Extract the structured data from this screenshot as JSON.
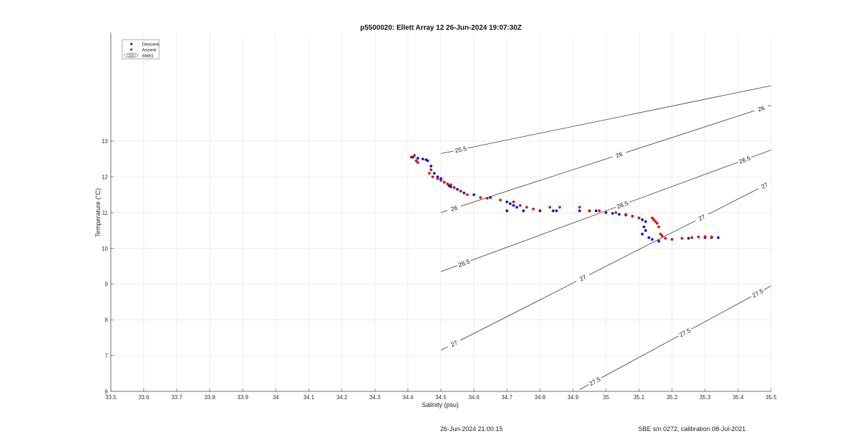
{
  "chart_data": {
    "type": "scatter",
    "title": "p5500020: Ellett Array 12 26-Jun-2024 19:07:30Z",
    "xlabel": "Salinity (psu)",
    "ylabel": "Temperature (°C)",
    "xlim": [
      33.5,
      35.5
    ],
    "ylim": [
      6,
      13.0
    ],
    "xticks": [
      "33.5",
      "33.6",
      "33.7",
      "33.8",
      "33.9",
      "34",
      "34.1",
      "34.2",
      "34.3",
      "34.4",
      "34.5",
      "34.6",
      "34.7",
      "34.8",
      "34.9",
      "35",
      "35.1",
      "35.2",
      "35.3",
      "35.4",
      "35.5"
    ],
    "yticks": [
      "6",
      "7",
      "8",
      "9",
      "10",
      "11",
      "12",
      "13"
    ],
    "grid": true,
    "legend_position": "top-left",
    "legend": [
      {
        "name": "Descent",
        "color": "#1010c8",
        "marker": "dot"
      },
      {
        "name": "Ascent",
        "color": "#d81010",
        "marker": "dot"
      },
      {
        "name": "data1",
        "marker": "contour"
      }
    ],
    "series": [
      {
        "name": "Descent",
        "color": "#1010c8",
        "points": [
          [
            34.415,
            12.55
          ],
          [
            34.43,
            12.52
          ],
          [
            34.445,
            12.5
          ],
          [
            34.455,
            12.48
          ],
          [
            34.46,
            12.45
          ],
          [
            34.47,
            12.3
          ],
          [
            34.48,
            12.1
          ],
          [
            34.49,
            12.0
          ],
          [
            34.5,
            11.95
          ],
          [
            34.51,
            11.85
          ],
          [
            34.52,
            11.8
          ],
          [
            34.525,
            11.75
          ],
          [
            34.53,
            11.72
          ],
          [
            34.54,
            11.7
          ],
          [
            34.55,
            11.65
          ],
          [
            34.56,
            11.6
          ],
          [
            34.57,
            11.55
          ],
          [
            34.6,
            11.5
          ],
          [
            34.65,
            11.42
          ],
          [
            34.7,
            11.3
          ],
          [
            34.71,
            11.25
          ],
          [
            34.72,
            11.2
          ],
          [
            34.73,
            11.15
          ],
          [
            34.7,
            11.05
          ],
          [
            34.75,
            11.05
          ],
          [
            34.8,
            11.05
          ],
          [
            34.84,
            11.05
          ],
          [
            34.85,
            11.05
          ],
          [
            34.92,
            11.05
          ],
          [
            34.95,
            11.05
          ],
          [
            34.97,
            11.05
          ],
          [
            35.0,
            11.0
          ],
          [
            35.02,
            10.98
          ],
          [
            35.04,
            10.95
          ],
          [
            35.06,
            10.93
          ],
          [
            35.08,
            10.9
          ],
          [
            35.1,
            10.85
          ],
          [
            35.11,
            10.8
          ],
          [
            35.12,
            10.75
          ],
          [
            35.115,
            10.6
          ],
          [
            35.12,
            10.5
          ],
          [
            35.11,
            10.4
          ],
          [
            35.13,
            10.3
          ],
          [
            35.14,
            10.25
          ],
          [
            35.16,
            10.2
          ],
          [
            35.2,
            10.25
          ],
          [
            35.25,
            10.28
          ],
          [
            35.3,
            10.3
          ],
          [
            35.32,
            10.3
          ],
          [
            35.34,
            10.3
          ]
        ]
      },
      {
        "name": "Ascent",
        "color": "#d81010",
        "points": [
          [
            34.41,
            12.55
          ],
          [
            34.42,
            12.6
          ],
          [
            34.425,
            12.45
          ],
          [
            34.43,
            12.4
          ],
          [
            34.47,
            12.2
          ],
          [
            34.465,
            12.1
          ],
          [
            34.475,
            12.0
          ],
          [
            34.49,
            11.95
          ],
          [
            34.5,
            11.9
          ],
          [
            34.51,
            11.85
          ],
          [
            34.52,
            11.8
          ],
          [
            34.53,
            11.78
          ],
          [
            34.54,
            11.7
          ],
          [
            34.56,
            11.6
          ],
          [
            34.58,
            11.5
          ],
          [
            34.62,
            11.42
          ],
          [
            34.64,
            11.4
          ],
          [
            34.68,
            11.35
          ],
          [
            34.72,
            11.3
          ],
          [
            34.74,
            11.2
          ],
          [
            34.76,
            11.15
          ],
          [
            34.78,
            11.1
          ],
          [
            34.83,
            11.15
          ],
          [
            34.86,
            11.15
          ],
          [
            34.92,
            11.15
          ],
          [
            34.95,
            11.05
          ],
          [
            34.98,
            11.05
          ],
          [
            35.03,
            11.0
          ],
          [
            35.06,
            10.95
          ],
          [
            35.08,
            10.9
          ],
          [
            35.1,
            10.85
          ],
          [
            35.14,
            10.85
          ],
          [
            35.145,
            10.8
          ],
          [
            35.15,
            10.75
          ],
          [
            35.155,
            10.7
          ],
          [
            35.16,
            10.6
          ],
          [
            35.165,
            10.4
          ],
          [
            35.17,
            10.35
          ],
          [
            35.18,
            10.28
          ],
          [
            35.2,
            10.25
          ],
          [
            35.23,
            10.28
          ],
          [
            35.26,
            10.3
          ],
          [
            35.28,
            10.32
          ],
          [
            35.3,
            10.33
          ],
          [
            35.32,
            10.32
          ]
        ]
      }
    ],
    "contours": [
      {
        "label": "25.5",
        "points": [
          [
            34.5,
            12.65
          ],
          [
            35.5,
            14.55
          ]
        ],
        "label_at": [
          0.06
        ]
      },
      {
        "label": "26",
        "points": [
          [
            34.5,
            11.0
          ],
          [
            35.5,
            14.0
          ]
        ],
        "label_at": [
          0.04,
          0.54,
          0.97
        ]
      },
      {
        "label": "26.5",
        "points": [
          [
            34.5,
            9.35
          ],
          [
            35.5,
            12.75
          ]
        ],
        "label_at": [
          0.07,
          0.55,
          0.92
        ]
      },
      {
        "label": "27",
        "points": [
          [
            34.5,
            7.15
          ],
          [
            35.5,
            11.85
          ]
        ],
        "label_at": [
          0.04,
          0.43,
          0.79,
          0.98
        ]
      },
      {
        "label": "27.5",
        "points": [
          [
            34.92,
            6.05
          ],
          [
            35.5,
            8.95
          ]
        ],
        "label_at": [
          0.08,
          0.55,
          0.93
        ]
      }
    ]
  },
  "footer": {
    "timestamp": "26-Jun-2024 21:00:15",
    "calibration": "SBE s/n 0272, calibration 08-Jul-2021"
  }
}
